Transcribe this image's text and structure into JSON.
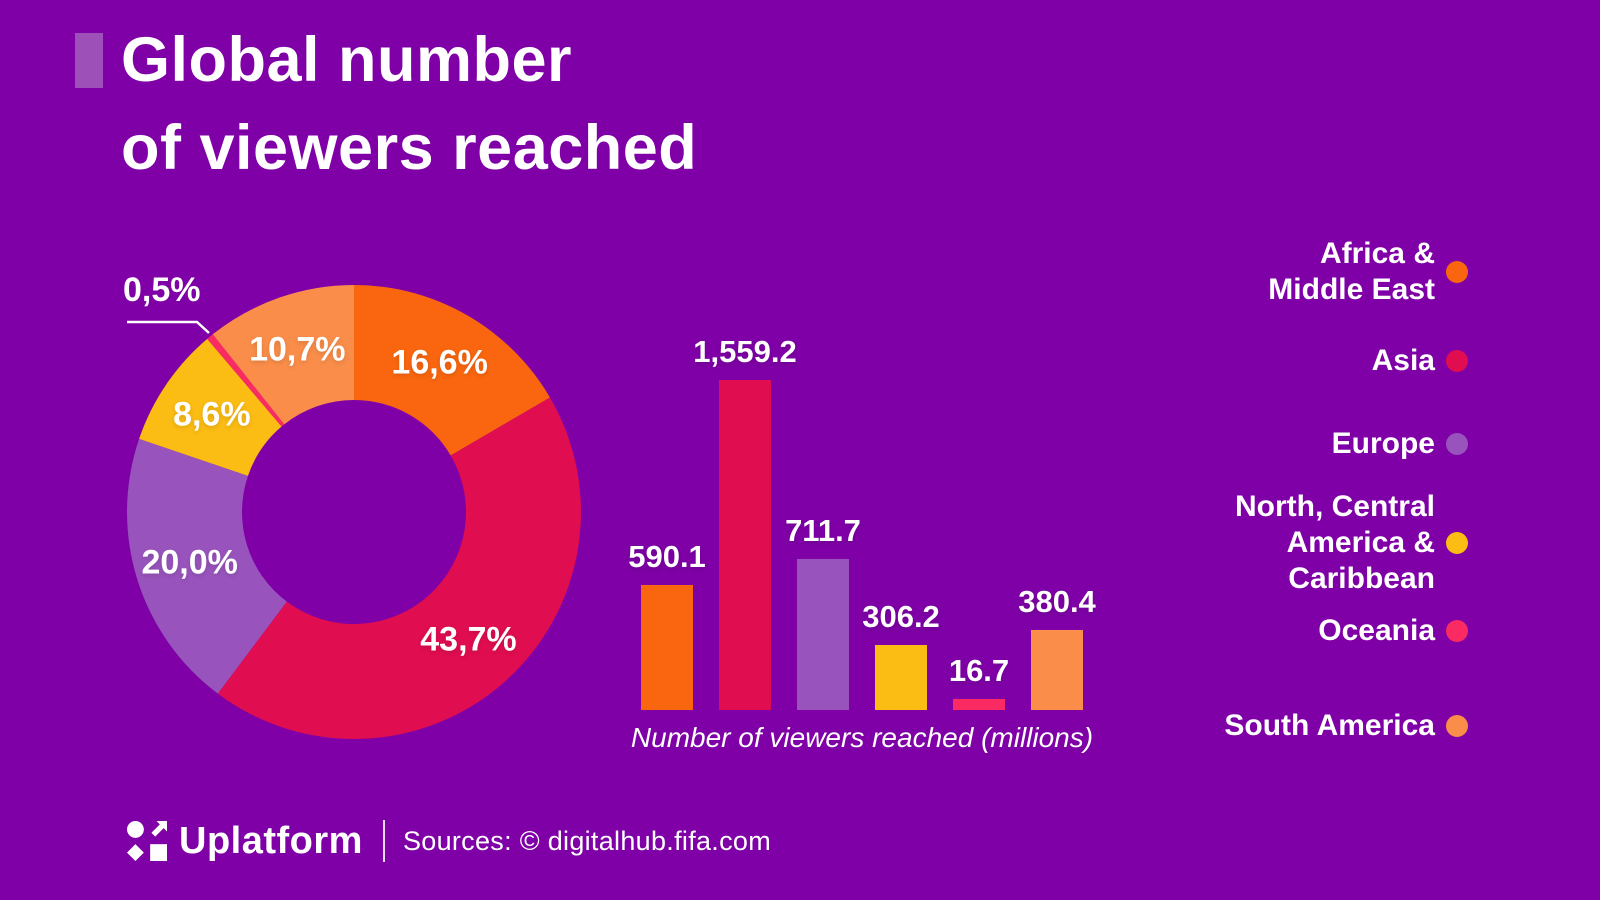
{
  "title": {
    "line1": "Global number",
    "line2": "of viewers reached"
  },
  "colors": {
    "background": "#7E00A6",
    "title_accent": "#9C50B8",
    "text": "#FFFFFF",
    "africa_middle_east": "#F9660F",
    "asia": "#E00D50",
    "europe": "#9854BC",
    "north_central_america_caribbean": "#FBBC13",
    "oceania": "#F92B62",
    "south_america": "#F98D49"
  },
  "chart_data": [
    {
      "type": "pie",
      "subtype": "donut",
      "start_angle_deg": 0,
      "direction": "clockwise",
      "slices": [
        {
          "region": "Africa & Middle East",
          "pct": 16.6,
          "label": "16,6%",
          "color_key": "africa_middle_east",
          "label_placement": "inside"
        },
        {
          "region": "Asia",
          "pct": 43.7,
          "label": "43,7%",
          "color_key": "asia",
          "label_placement": "inside"
        },
        {
          "region": "Europe",
          "pct": 20.0,
          "label": "20,0%",
          "color_key": "europe",
          "label_placement": "inside"
        },
        {
          "region": "North, Central America & Caribbean",
          "pct": 8.6,
          "label": "8,6%",
          "color_key": "north_central_america_caribbean",
          "label_placement": "inside"
        },
        {
          "region": "Oceania",
          "pct": 0.5,
          "label": "0,5%",
          "color_key": "oceania",
          "label_placement": "outside-callout"
        },
        {
          "region": "South America",
          "pct": 10.7,
          "label": "10,7%",
          "color_key": "south_america",
          "label_placement": "inside"
        }
      ]
    },
    {
      "type": "bar",
      "categories": [
        "Africa & Middle East",
        "Asia",
        "Europe",
        "North, Central America & Caribbean",
        "Oceania",
        "South America"
      ],
      "values": [
        590.1,
        1559.2,
        711.7,
        306.2,
        16.7,
        380.4
      ],
      "value_labels": [
        "590.1",
        "1,559.2",
        "711.7",
        "306.2",
        "16.7",
        "380.4"
      ],
      "color_keys": [
        "africa_middle_east",
        "asia",
        "europe",
        "north_central_america_caribbean",
        "oceania",
        "south_america"
      ],
      "xlabel": "Number of viewers reached (millions)",
      "ylabel": "",
      "axes_visible": false,
      "value_labels_position": "above-bars"
    }
  ],
  "legend": {
    "position": "right",
    "items": [
      {
        "lines": [
          "Africa &",
          "Middle East"
        ],
        "color_key": "africa_middle_east"
      },
      {
        "lines": [
          "Asia"
        ],
        "color_key": "asia"
      },
      {
        "lines": [
          "Europe"
        ],
        "color_key": "europe"
      },
      {
        "lines": [
          "North, Central",
          "America &",
          "Caribbean"
        ],
        "color_key": "north_central_america_caribbean"
      },
      {
        "lines": [
          "Oceania"
        ],
        "color_key": "oceania"
      },
      {
        "lines": [
          "South America"
        ],
        "color_key": "south_america"
      }
    ]
  },
  "footer": {
    "brand": "Uplatform",
    "sources": "Sources: © digitalhub.fifa.com"
  }
}
